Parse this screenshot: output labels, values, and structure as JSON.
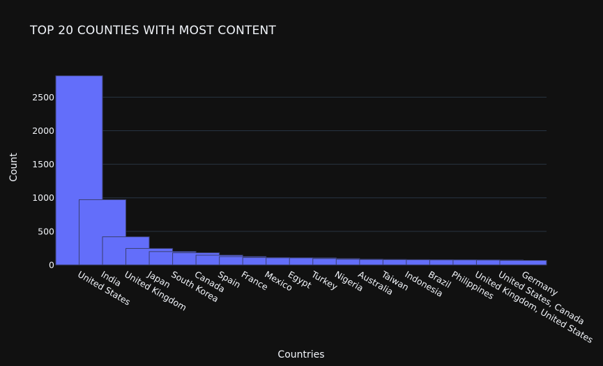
{
  "chart_data": {
    "type": "bar",
    "title": "TOP 20 COUNTIES WITH MOST CONTENT",
    "xlabel": "Countries",
    "ylabel": "Count",
    "ylim": [
      0,
      2950
    ],
    "yticks": [
      0,
      500,
      1000,
      1500,
      2000,
      2500
    ],
    "grid": true,
    "categories": [
      "United States",
      "India",
      "United Kingdom",
      "Japan",
      "South Korea",
      "Canada",
      "Spain",
      "France",
      "Mexico",
      "Egypt",
      "Turkey",
      "Nigeria",
      "Australia",
      "Taiwan",
      "Indonesia",
      "Brazil",
      "Philippines",
      "United Kingdom, United States",
      "United States, Canada",
      "Germany"
    ],
    "values": [
      2818,
      972,
      419,
      245,
      199,
      181,
      145,
      124,
      110,
      106,
      105,
      95,
      85,
      81,
      79,
      77,
      75,
      75,
      73,
      67
    ],
    "colors": {
      "background": "#111111",
      "bar_fill": "#636efa",
      "bar_stroke": "#3a3f6e",
      "grid": "#283442",
      "text": "#f2f5fa"
    }
  }
}
